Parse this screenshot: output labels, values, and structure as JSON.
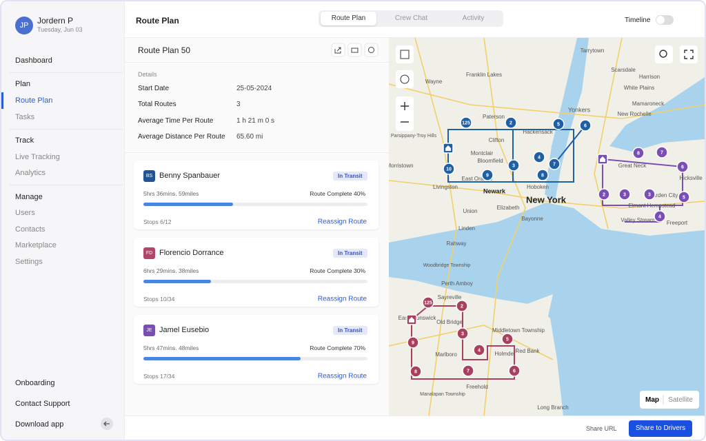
{
  "user": {
    "initials": "JP",
    "name": "Jordern P",
    "date": "Tuesday, Jun 03"
  },
  "sidebar": {
    "top": "Dashboard",
    "sections": [
      {
        "title": "Plan",
        "items": [
          "Route Plan",
          "Tasks"
        ]
      },
      {
        "title": "Track",
        "items": [
          "Live Tracking",
          "Analytics"
        ]
      },
      {
        "title": "Manage",
        "items": [
          "Users",
          "Contacts",
          "Marketplace",
          "Settings"
        ]
      }
    ],
    "bottom": [
      "Onboarding",
      "Contact Support",
      "Download app"
    ]
  },
  "header": {
    "title": "Route Plan",
    "tabs": [
      "Route Plan",
      "Crew Chat",
      "Activity"
    ],
    "toggle": "Timeline"
  },
  "plan": {
    "title": "Route Plan 50",
    "details_label": "Details",
    "details": [
      [
        "Start Date",
        "25-05-2024"
      ],
      [
        "Total Routes",
        "3"
      ],
      [
        "Average Time Per Route",
        "1 h 21 m 0 s"
      ],
      [
        "Average Distance Per Route",
        "65.60 mi"
      ]
    ]
  },
  "drivers": [
    {
      "initials": "BS",
      "name": "Benny Spanbauer",
      "color": "#1f5596",
      "status": "In Transit",
      "stats": "5hrs 36mins.  59miles",
      "complete": "Route Complete 40%",
      "progress": 40,
      "stops": "Stops  6/12",
      "action": "Reassign Route"
    },
    {
      "initials": "FD",
      "name": "Florencio Dorrance",
      "color": "#b2456a",
      "status": "In Transit",
      "stats": "6hrs 29mins.  38miles",
      "complete": "Route Complete 30%",
      "progress": 30,
      "stops": "Stops  10/34",
      "action": "Reassign Route"
    },
    {
      "initials": "JE",
      "name": "Jamel Eusebio",
      "color": "#7a4fb5",
      "status": "In Transit",
      "stats": "5hrs 47mins.  48miles",
      "complete": "Route Complete 70%",
      "progress": 70,
      "stops": "Stops  17/34",
      "action": "Reassign Route"
    }
  ],
  "map": {
    "places": [
      "New York",
      "Newark",
      "Yonkers",
      "Paterson",
      "Clifton",
      "Montclair",
      "Bloomfield",
      "East Orange",
      "Hoboken",
      "Hackensack",
      "White Plains",
      "Tarrytown",
      "Franklin Lakes",
      "Wayne",
      "Parsippany-Troy Hills",
      "Morristown",
      "Livingston",
      "Union",
      "Elizabeth",
      "Bayonne",
      "Linden",
      "Rahway",
      "Woodbridge Township",
      "Perth Amboy",
      "Sayreville",
      "East Brunswick",
      "Old Bridge",
      "Marlboro",
      "Holmdel",
      "Middletown Township",
      "Red Bank",
      "Manalapan Township",
      "Freehold",
      "Long Branch",
      "Great Neck",
      "Garden City",
      "Elmont",
      "Hempstead",
      "Valley Stream",
      "Freeport",
      "Hicksville",
      "New Rochelle",
      "Mamaroneck",
      "Harrison",
      "Scarsdale"
    ],
    "routes": [
      {
        "color": "#1f5fa3",
        "stops": [
          "125",
          "2",
          "5",
          "6",
          "4",
          "7",
          "3",
          "8",
          "9",
          "10"
        ]
      },
      {
        "color": "#7a4fb5",
        "stops": [
          "8",
          "7",
          "6",
          "2",
          "3",
          "3",
          "5",
          "4"
        ]
      },
      {
        "color": "#a8405f",
        "stops": [
          "125",
          "2",
          "3",
          "4",
          "5",
          "6",
          "7",
          "8",
          "9"
        ]
      }
    ],
    "modes": [
      "Map",
      "Satellite"
    ]
  },
  "footer": {
    "share_url": "Share URL",
    "share_drivers": "Share to Drivers"
  }
}
